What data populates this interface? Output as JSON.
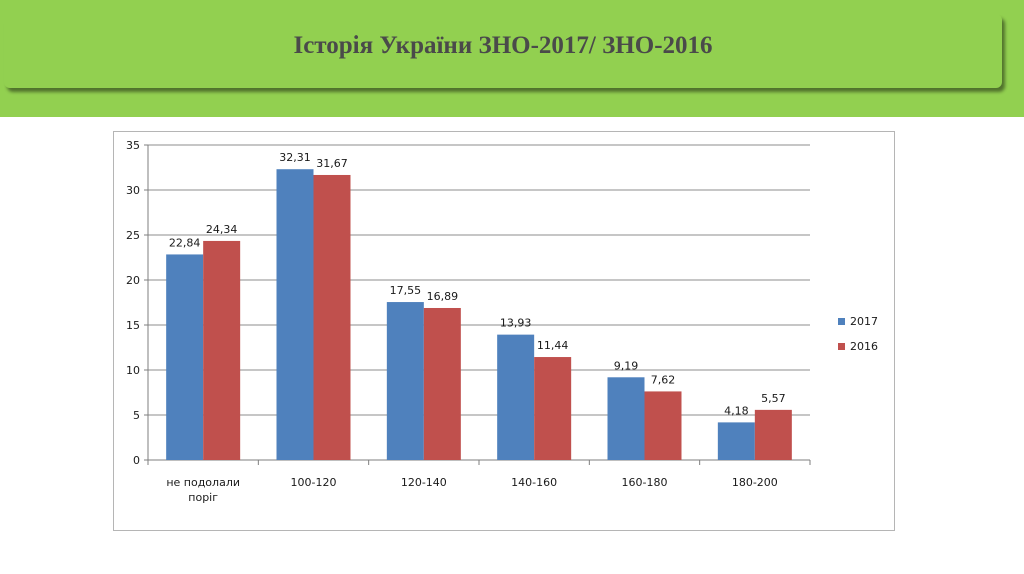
{
  "slide": {
    "title": "Історія України ЗНО-2017/ ЗНО-2016",
    "banner_color": "#92d050"
  },
  "chart_data": {
    "type": "bar",
    "categories": [
      "не подолали поріг",
      "100-120",
      "120-140",
      "140-160",
      "160-180",
      "180-200"
    ],
    "series": [
      {
        "name": "2017",
        "color": "#4f81bd",
        "values": [
          22.84,
          32.31,
          17.55,
          13.93,
          9.19,
          4.18
        ],
        "labels": [
          "22,84",
          "32,31",
          "17,55",
          "13,93",
          "9,19",
          "4,18"
        ]
      },
      {
        "name": "2016",
        "color": "#c0504d",
        "values": [
          24.34,
          31.67,
          16.89,
          11.44,
          7.62,
          5.57
        ],
        "labels": [
          "24,34",
          "31,67",
          "16,89",
          "11,44",
          "7,62",
          "5,57"
        ]
      }
    ],
    "ylim": [
      0,
      35
    ],
    "yticks": [
      0,
      5,
      10,
      15,
      20,
      25,
      30,
      35
    ],
    "grid": true,
    "legend": "right"
  }
}
